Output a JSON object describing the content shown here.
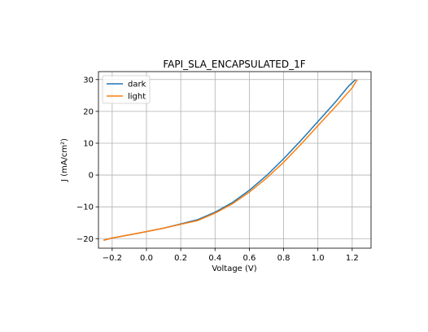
{
  "chart_data": {
    "type": "line",
    "title": "FAPI_SLA_ENCAPSULATED_1F",
    "xlabel": "Voltage (V)",
    "ylabel": "J (mA/cm²)",
    "xlim": [
      -0.28,
      1.31
    ],
    "ylim": [
      -23,
      32.5
    ],
    "xticks": [
      -0.2,
      0.0,
      0.2,
      0.4,
      0.6,
      0.8,
      1.0,
      1.2
    ],
    "xtick_labels": [
      "−0.2",
      "0.0",
      "0.2",
      "0.4",
      "0.6",
      "0.8",
      "1.0",
      "1.2"
    ],
    "yticks": [
      -20,
      -10,
      0,
      10,
      20,
      30
    ],
    "ytick_labels": [
      "−20",
      "−10",
      "0",
      "10",
      "20",
      "30"
    ],
    "grid": true,
    "legend_position": "top-left",
    "series": [
      {
        "name": "dark",
        "color": "#1f77b4",
        "x": [
          -0.25,
          -0.2,
          -0.1,
          0.0,
          0.1,
          0.2,
          0.3,
          0.4,
          0.5,
          0.6,
          0.7,
          0.8,
          0.9,
          1.0,
          1.1,
          1.18,
          1.22
        ],
        "y": [
          -20.5,
          -19.8,
          -18.8,
          -17.8,
          -16.7,
          -15.4,
          -14.0,
          -11.7,
          -8.7,
          -4.8,
          -0.2,
          5.1,
          10.8,
          16.8,
          22.8,
          28.0,
          30.0
        ]
      },
      {
        "name": "light",
        "color": "#ff7f0e",
        "x": [
          -0.25,
          -0.2,
          -0.1,
          0.0,
          0.1,
          0.2,
          0.3,
          0.4,
          0.5,
          0.6,
          0.7,
          0.8,
          0.9,
          1.0,
          1.1,
          1.2,
          1.23
        ],
        "y": [
          -20.5,
          -19.8,
          -18.8,
          -17.8,
          -16.7,
          -15.5,
          -14.3,
          -12.0,
          -9.1,
          -5.4,
          -1.0,
          4.0,
          9.6,
          15.5,
          21.3,
          27.4,
          30.0
        ]
      }
    ]
  }
}
